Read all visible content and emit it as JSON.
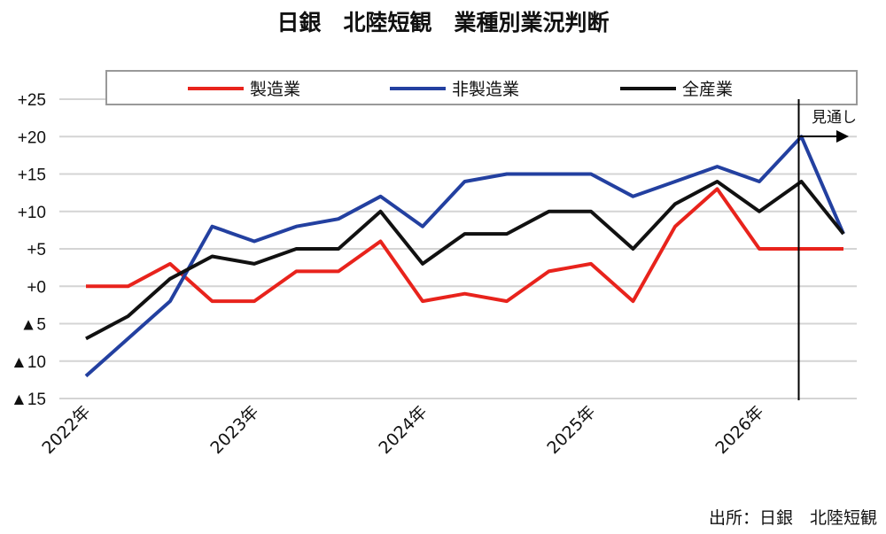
{
  "chart_data": {
    "type": "line",
    "title": "日銀　北陸短観　業種別業況判断",
    "source": "出所：日銀　北陸短観",
    "annotation": "見通し",
    "legend_placement": "top",
    "grid": true,
    "ylim": [
      -15,
      25
    ],
    "y_ticks": [
      {
        "value": 25,
        "label": "+25"
      },
      {
        "value": 20,
        "label": "+20"
      },
      {
        "value": 15,
        "label": "+15"
      },
      {
        "value": 10,
        "label": "+10"
      },
      {
        "value": 5,
        "label": "+5"
      },
      {
        "value": 0,
        "label": "+0"
      },
      {
        "value": -5,
        "label": "▲5"
      },
      {
        "value": -10,
        "label": "▲10"
      },
      {
        "value": -15,
        "label": "▲15"
      }
    ],
    "x_tick_labels": [
      {
        "index": 0,
        "label": "2022年"
      },
      {
        "index": 4,
        "label": "2023年"
      },
      {
        "index": 8,
        "label": "2024年"
      },
      {
        "index": 12,
        "label": "2025年"
      },
      {
        "index": 16,
        "label": "2026年"
      }
    ],
    "forecast_divider_index": 17,
    "series": [
      {
        "name": "製造業",
        "color": "#e8231c",
        "values": [
          0,
          0,
          3,
          -2,
          -2,
          2,
          2,
          6,
          -2,
          -1,
          -2,
          2,
          3,
          -2,
          8,
          13,
          5,
          5,
          5
        ]
      },
      {
        "name": "非製造業",
        "color": "#2340a0",
        "values": [
          -12,
          null,
          -2,
          8,
          6,
          8,
          9,
          12,
          8,
          14,
          15,
          15,
          15,
          12,
          14,
          16,
          14,
          20,
          7
        ]
      },
      {
        "name": "全産業",
        "color": "#111111",
        "values": [
          -7,
          -4,
          1,
          4,
          3,
          5,
          5,
          10,
          3,
          7,
          7,
          10,
          10,
          5,
          11,
          14,
          10,
          14,
          7
        ]
      }
    ]
  }
}
